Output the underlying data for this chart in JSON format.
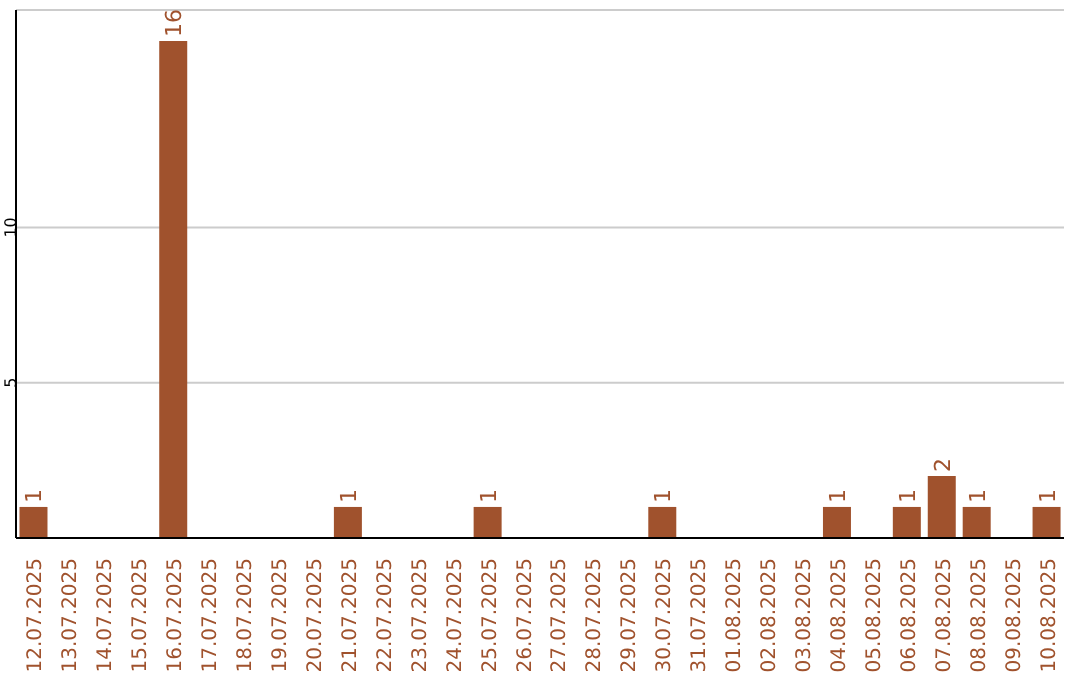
{
  "chart_data": {
    "type": "bar",
    "categories": [
      "12.07.2025",
      "13.07.2025",
      "14.07.2025",
      "15.07.2025",
      "16.07.2025",
      "17.07.2025",
      "18.07.2025",
      "19.07.2025",
      "20.07.2025",
      "21.07.2025",
      "22.07.2025",
      "23.07.2025",
      "24.07.2025",
      "25.07.2025",
      "26.07.2025",
      "27.07.2025",
      "28.07.2025",
      "29.07.2025",
      "30.07.2025",
      "31.07.2025",
      "01.08.2025",
      "02.08.2025",
      "03.08.2025",
      "04.08.2025",
      "05.08.2025",
      "06.08.2025",
      "07.08.2025",
      "08.08.2025",
      "09.08.2025",
      "10.08.2025"
    ],
    "values": [
      1,
      0,
      0,
      0,
      16,
      0,
      0,
      0,
      0,
      1,
      0,
      0,
      0,
      1,
      0,
      0,
      0,
      0,
      1,
      0,
      0,
      0,
      0,
      1,
      0,
      1,
      2,
      1,
      0,
      1
    ],
    "value_labels": [
      "1",
      null,
      null,
      null,
      "16",
      null,
      null,
      null,
      null,
      "1",
      null,
      null,
      null,
      "1",
      null,
      null,
      null,
      null,
      "1",
      null,
      null,
      null,
      null,
      "1",
      null,
      "1",
      "2",
      "1",
      null,
      "1"
    ],
    "color": "#a0522d",
    "ylim": [
      0,
      17
    ],
    "yticks": [
      5,
      10
    ],
    "grid": "y"
  }
}
